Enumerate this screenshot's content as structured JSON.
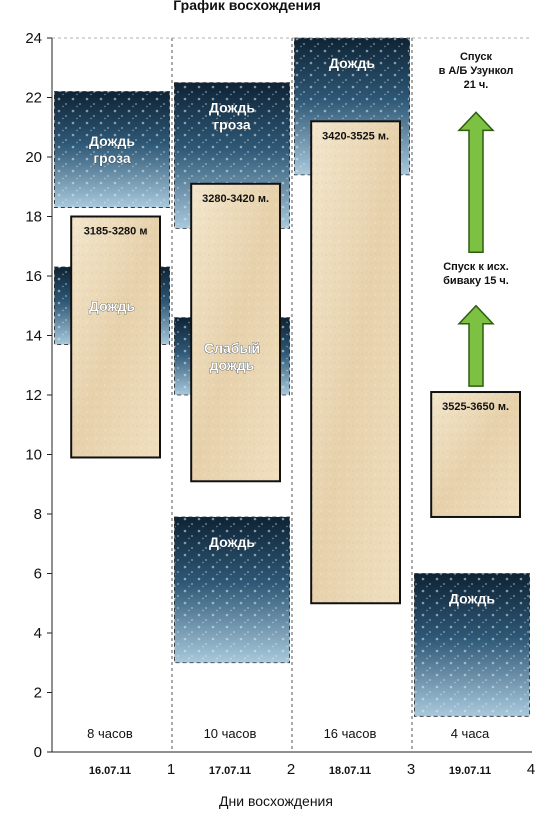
{
  "chart_data": {
    "type": "gantt",
    "title": "График восхождения",
    "xlabel": "Дни восхождения",
    "ylabel": "",
    "ylim": [
      0,
      24
    ],
    "xlim": [
      0,
      4
    ],
    "y_ticks": [
      0,
      2,
      4,
      6,
      8,
      10,
      12,
      14,
      16,
      18,
      20,
      22,
      24
    ],
    "x_ticks": [
      1,
      2,
      3,
      4
    ],
    "grid": "vertical-dashed",
    "days": [
      {
        "index": 0,
        "date": "16.07.11",
        "duration": "8 часов"
      },
      {
        "index": 1,
        "date": "17.07.11",
        "duration": "10 часов"
      },
      {
        "index": 2,
        "date": "18.07.11",
        "duration": "16 часов"
      },
      {
        "index": 3,
        "date": "19.07.11",
        "duration": "4 часа"
      }
    ],
    "climb_segments": [
      {
        "day": 0,
        "label": "3185-3280 м",
        "start": 9.9,
        "end": 18.0
      },
      {
        "day": 1,
        "label": "3280-3420 м.",
        "start": 9.1,
        "end": 19.1
      },
      {
        "day": 2,
        "label": "3420-3525 м.",
        "start": 5.0,
        "end": 21.2
      },
      {
        "day": 3,
        "label": "3525-3650 м.",
        "start": 7.9,
        "end": 12.1
      }
    ],
    "weather": [
      {
        "day": 0,
        "label": "Дождь гроза",
        "lines": [
          "Дождь",
          "гроза"
        ],
        "start": 18.3,
        "end": 22.2
      },
      {
        "day": 0,
        "label": "Дождь",
        "lines": [
          "Дождь"
        ],
        "start": 13.7,
        "end": 16.3
      },
      {
        "day": 1,
        "label": "Дождь гроза",
        "lines": [
          "Дождь",
          "гроза"
        ],
        "start": 17.6,
        "end": 22.5
      },
      {
        "day": 1,
        "label": "Слабый дождь",
        "lines": [
          "Слабый",
          "дождь"
        ],
        "start": 12.0,
        "end": 14.6
      },
      {
        "day": 1,
        "label": "Дождь",
        "lines": [
          "Дождь"
        ],
        "start": 3.0,
        "end": 7.9
      },
      {
        "day": 2,
        "label": "Дождь",
        "lines": [
          "Дождь"
        ],
        "start": 19.4,
        "end": 24.0
      },
      {
        "day": 3,
        "label": "Дождь",
        "lines": [
          "Дождь"
        ],
        "start": 1.2,
        "end": 6.0
      }
    ],
    "annotations": [
      {
        "day": 3,
        "lines": [
          "Спуск",
          "в А/Б Узункол",
          "21 ч."
        ],
        "arrow_from": 16.8,
        "arrow_to": 21.5
      },
      {
        "day": 3,
        "lines": [
          "Спуск к исх.",
          "биваку 15 ч."
        ],
        "arrow_from": 12.3,
        "arrow_to": 15.0
      }
    ]
  }
}
